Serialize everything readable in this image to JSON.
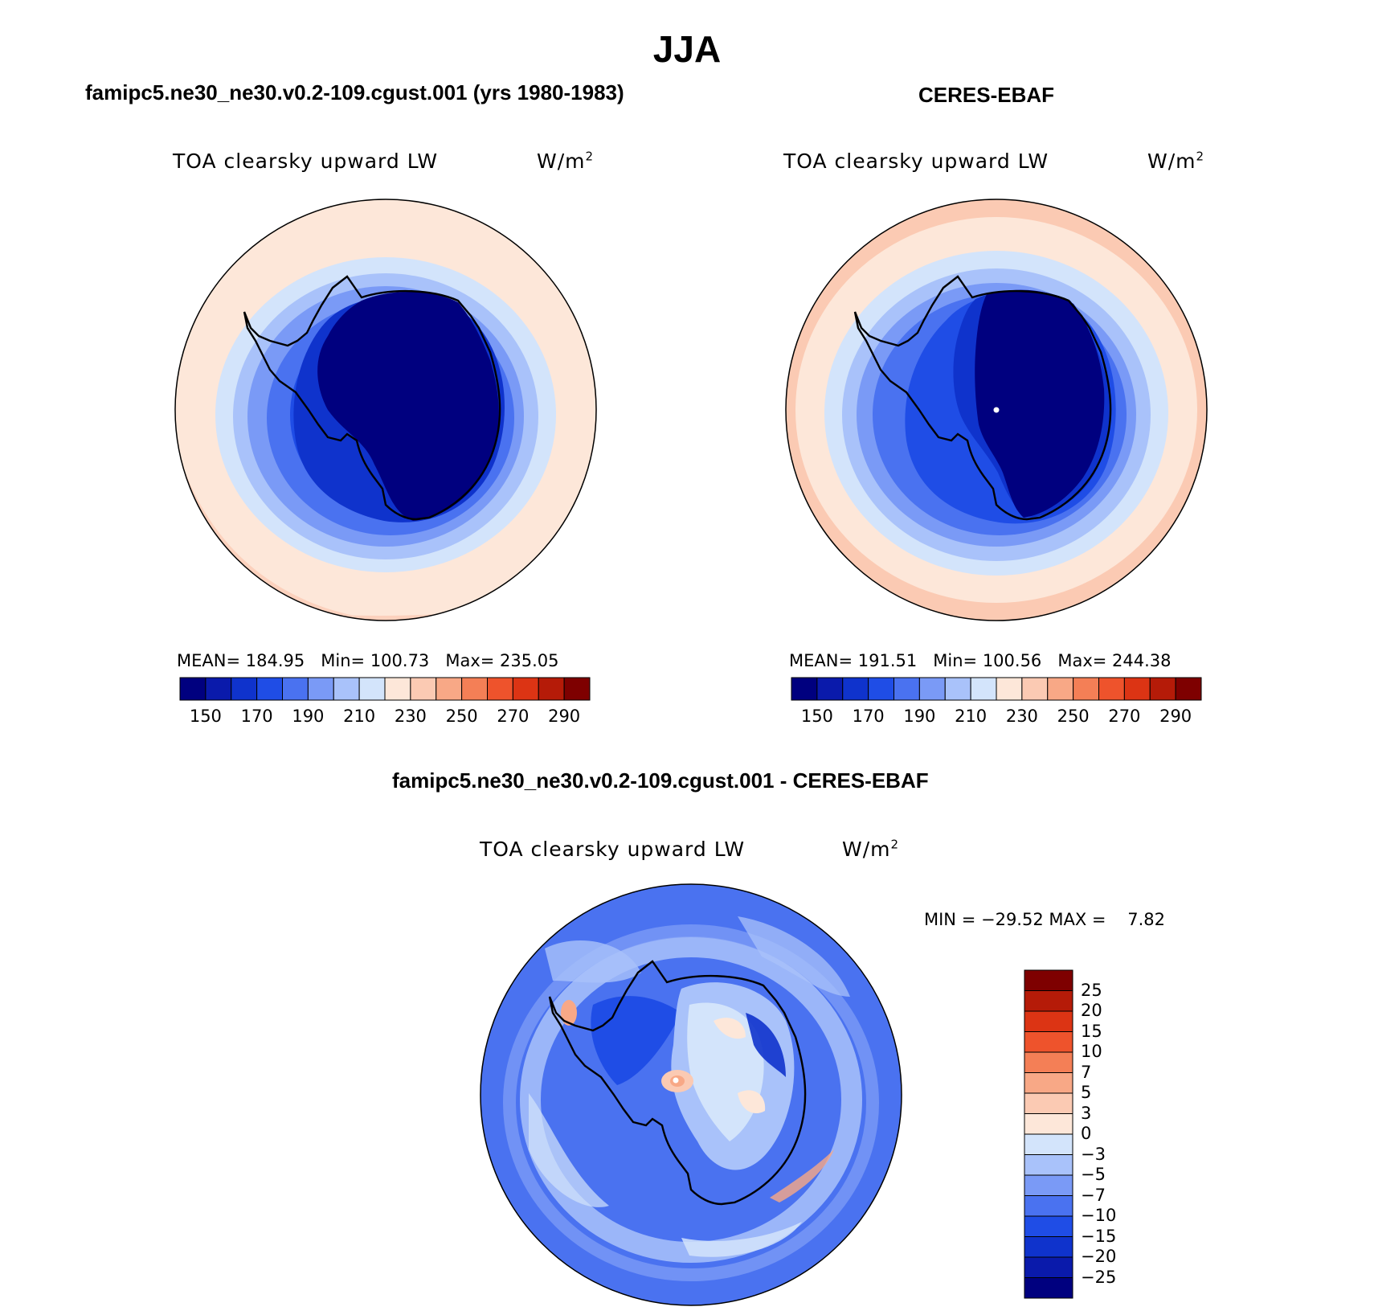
{
  "figure": {
    "season_title": "JJA"
  },
  "panels": {
    "model": {
      "title": "famipc5.ne30_ne30.v0.2-109.cgust.001 (yrs 1980-1983)",
      "variable": "TOA clearsky upward LW",
      "units_base": "W/m",
      "units_exp": "2",
      "stats": {
        "mean_label": "MEAN=",
        "mean": "184.95",
        "min_label": "Min=",
        "min": "100.73",
        "max_label": "Max=",
        "max": "235.05"
      }
    },
    "obs": {
      "title": "CERES-EBAF",
      "variable": "TOA clearsky upward LW",
      "units_base": "W/m",
      "units_exp": "2",
      "stats": {
        "mean_label": "MEAN=",
        "mean": "191.51",
        "min_label": "Min=",
        "min": "100.56",
        "max_label": "Max=",
        "max": "244.38"
      }
    },
    "diff": {
      "title": "famipc5.ne30_ne30.v0.2-109.cgust.001 - CERES-EBAF",
      "variable": "TOA clearsky upward LW",
      "units_base": "W/m",
      "units_exp": "2",
      "stats": {
        "min_label": "MIN =",
        "min": "−29.52",
        "max_label": "MAX =",
        "max": "7.82"
      }
    }
  },
  "chart_data": [
    {
      "type": "heatmap",
      "map": "south-polar-stereographic",
      "title": "famipc5.ne30_ne30.v0.2-109.cgust.001 (yrs 1980-1983)",
      "variable": "TOA clearsky upward LW",
      "units": "W/m2",
      "mean": 184.95,
      "min": 100.73,
      "max": 235.05,
      "colorbar": {
        "ticks": [
          "150",
          "170",
          "190",
          "210",
          "230",
          "250",
          "270",
          "290"
        ],
        "colors": [
          "#00007f",
          "#0a1aab",
          "#0f33cc",
          "#1f4de6",
          "#4a72f0",
          "#7a9af6",
          "#a9c2fa",
          "#d3e4fb",
          "#fde7d9",
          "#fbcab3",
          "#f8a886",
          "#f47f56",
          "#ee532c",
          "#dc3414",
          "#b51b08",
          "#7e0000"
        ]
      }
    },
    {
      "type": "heatmap",
      "map": "south-polar-stereographic",
      "title": "CERES-EBAF",
      "variable": "TOA clearsky upward LW",
      "units": "W/m2",
      "mean": 191.51,
      "min": 100.56,
      "max": 244.38,
      "colorbar": {
        "ticks": [
          "150",
          "170",
          "190",
          "210",
          "230",
          "250",
          "270",
          "290"
        ],
        "colors": [
          "#00007f",
          "#0a1aab",
          "#0f33cc",
          "#1f4de6",
          "#4a72f0",
          "#7a9af6",
          "#a9c2fa",
          "#d3e4fb",
          "#fde7d9",
          "#fbcab3",
          "#f8a886",
          "#f47f56",
          "#ee532c",
          "#dc3414",
          "#b51b08",
          "#7e0000"
        ]
      }
    },
    {
      "type": "heatmap",
      "map": "south-polar-stereographic",
      "title": "famipc5.ne30_ne30.v0.2-109.cgust.001 - CERES-EBAF",
      "variable": "TOA clearsky upward LW",
      "units": "W/m2",
      "min": -29.52,
      "max": 7.82,
      "colorbar": {
        "ticks": [
          "25",
          "20",
          "15",
          "10",
          "7",
          "5",
          "3",
          "0",
          "−3",
          "−5",
          "−7",
          "−10",
          "−15",
          "−20",
          "−25"
        ],
        "colors": [
          "#7e0000",
          "#b51b08",
          "#dc3414",
          "#ee532c",
          "#f47f56",
          "#f8a886",
          "#fbcab3",
          "#fde7d9",
          "#d3e4fb",
          "#a9c2fa",
          "#7a9af6",
          "#4a72f0",
          "#1f4de6",
          "#0f33cc",
          "#0a1aab",
          "#00007f"
        ]
      }
    }
  ]
}
